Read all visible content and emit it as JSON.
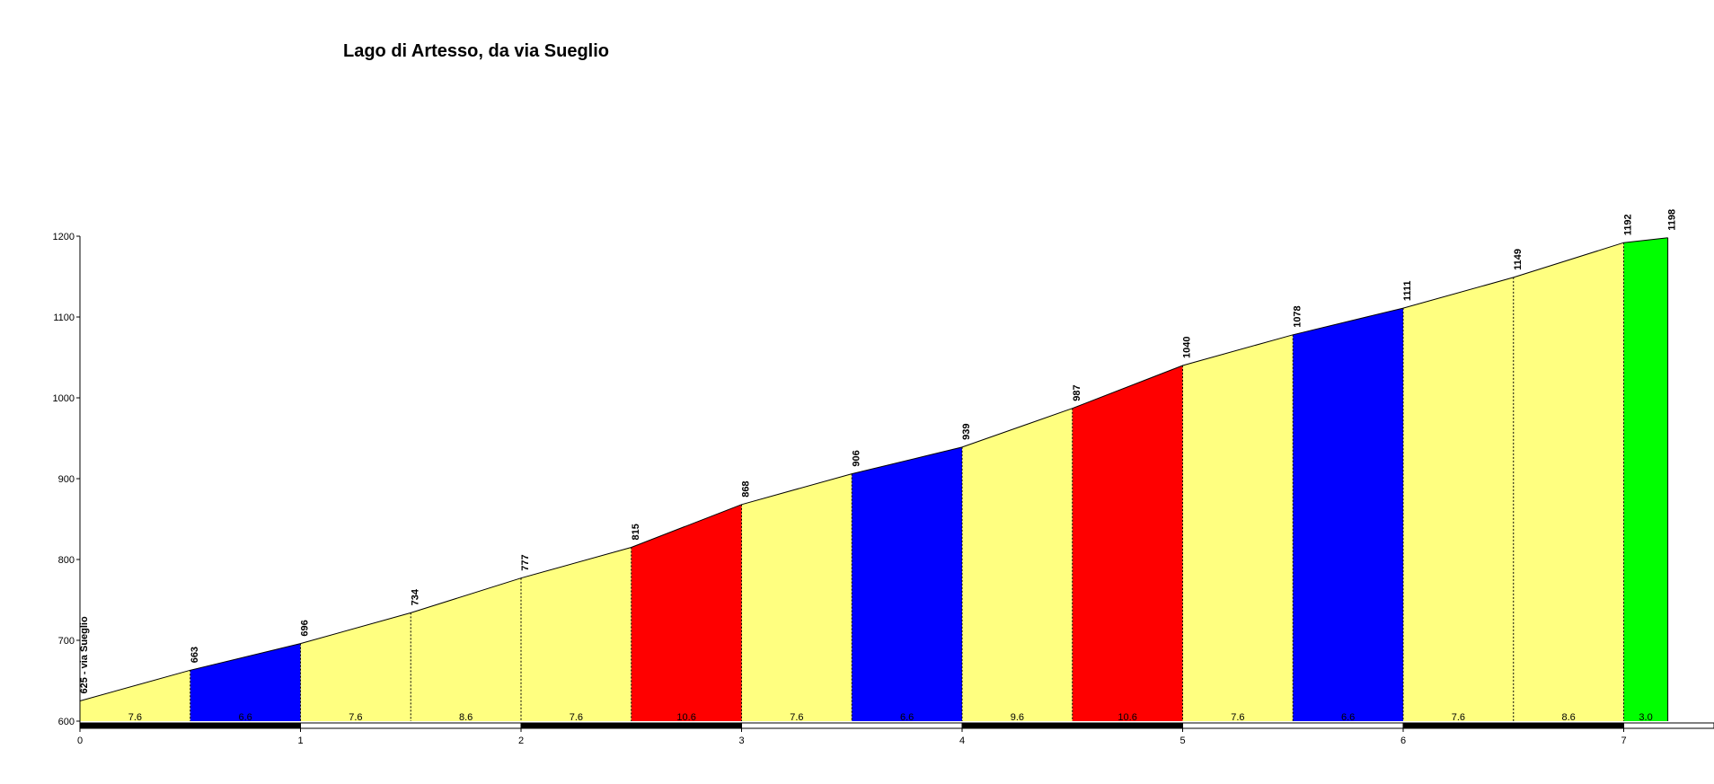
{
  "chart_data": {
    "type": "area",
    "title": "Lago di Artesso, da via Sueglio",
    "xlabel": "",
    "ylabel": "",
    "xlim": [
      0,
      7.5
    ],
    "ylim": [
      600,
      1200
    ],
    "x_ticks": [
      "0",
      "1",
      "2",
      "3",
      "4",
      "5",
      "6",
      "7"
    ],
    "y_ticks": [
      "600",
      "700",
      "800",
      "900",
      "1000",
      "1100",
      "1200"
    ],
    "grid": false,
    "legend": "none",
    "start_label": "625 - via Sueglio",
    "profile": {
      "x": [
        0,
        0.5,
        1,
        1.5,
        2,
        2.5,
        3,
        3.5,
        4,
        4.5,
        5,
        5.5,
        6,
        6.5,
        7,
        7.2
      ],
      "y": [
        625,
        663,
        696,
        734,
        777,
        815,
        868,
        906,
        939,
        987,
        1040,
        1078,
        1111,
        1149,
        1192,
        1198
      ],
      "labels": [
        "625 - via Sueglio",
        "663",
        "696",
        "734",
        "777",
        "815",
        "868",
        "906",
        "939",
        "987",
        "1040",
        "1078",
        "1111",
        "1149",
        "1192",
        "1198"
      ]
    },
    "segments": [
      {
        "x0": 0,
        "x1": 0.5,
        "gradient": "7.6",
        "color": "#ffff80"
      },
      {
        "x0": 0.5,
        "x1": 1,
        "gradient": "6.6",
        "color": "#0000ff"
      },
      {
        "x0": 1,
        "x1": 1.5,
        "gradient": "7.6",
        "color": "#ffff80"
      },
      {
        "x0": 1.5,
        "x1": 2,
        "gradient": "8.6",
        "color": "#ffff80"
      },
      {
        "x0": 2,
        "x1": 2.5,
        "gradient": "7.6",
        "color": "#ffff80"
      },
      {
        "x0": 2.5,
        "x1": 3,
        "gradient": "10.6",
        "color": "#ff0000"
      },
      {
        "x0": 3,
        "x1": 3.5,
        "gradient": "7.6",
        "color": "#ffff80"
      },
      {
        "x0": 3.5,
        "x1": 4,
        "gradient": "6.6",
        "color": "#0000ff"
      },
      {
        "x0": 4,
        "x1": 4.5,
        "gradient": "9.6",
        "color": "#ffff80"
      },
      {
        "x0": 4.5,
        "x1": 5,
        "gradient": "10.6",
        "color": "#ff0000"
      },
      {
        "x0": 5,
        "x1": 5.5,
        "gradient": "7.6",
        "color": "#ffff80"
      },
      {
        "x0": 5.5,
        "x1": 6,
        "gradient": "6.6",
        "color": "#0000ff"
      },
      {
        "x0": 6,
        "x1": 6.5,
        "gradient": "7.6",
        "color": "#ffff80"
      },
      {
        "x0": 6.5,
        "x1": 7,
        "gradient": "8.6",
        "color": "#ffff80"
      },
      {
        "x0": 7,
        "x1": 7.2,
        "gradient": "3.0",
        "color": "#00ff00"
      }
    ]
  }
}
